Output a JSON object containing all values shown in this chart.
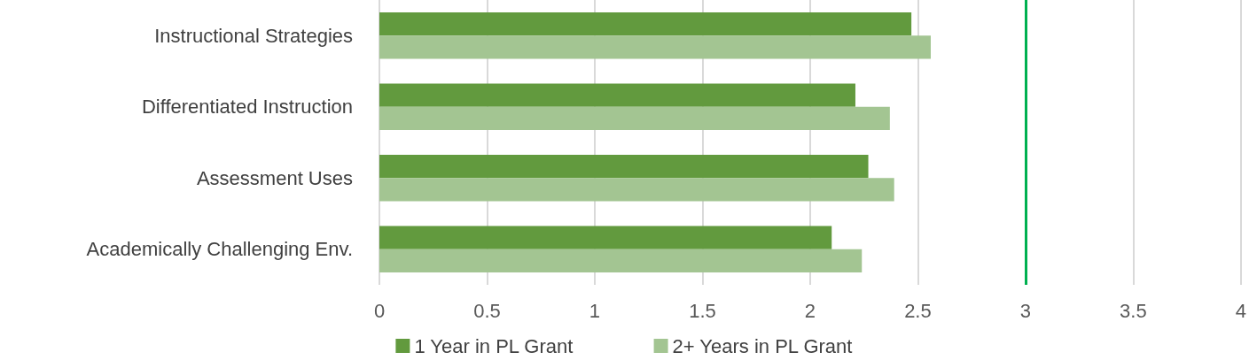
{
  "chart_data": {
    "type": "bar",
    "orientation": "horizontal",
    "categories": [
      "Instructional Strategies",
      "Differentiated Instruction",
      "Assessment Uses",
      "Academically Challenging Env."
    ],
    "series": [
      {
        "name": "1 Year in PL Grant",
        "color": "#629a3e",
        "values": [
          2.47,
          2.21,
          2.27,
          2.1
        ]
      },
      {
        "name": "2+ Years in PL Grant",
        "color": "#a3c592",
        "values": [
          2.56,
          2.37,
          2.39,
          2.24
        ]
      }
    ],
    "xlim": [
      0,
      4
    ],
    "xticks": [
      0,
      0.5,
      1,
      1.5,
      2,
      2.5,
      3,
      3.5,
      4
    ],
    "grid": "x",
    "legend": "bottom",
    "ref_lines": [
      {
        "axis": "x",
        "value": 3,
        "color": "#00b050"
      }
    ]
  }
}
